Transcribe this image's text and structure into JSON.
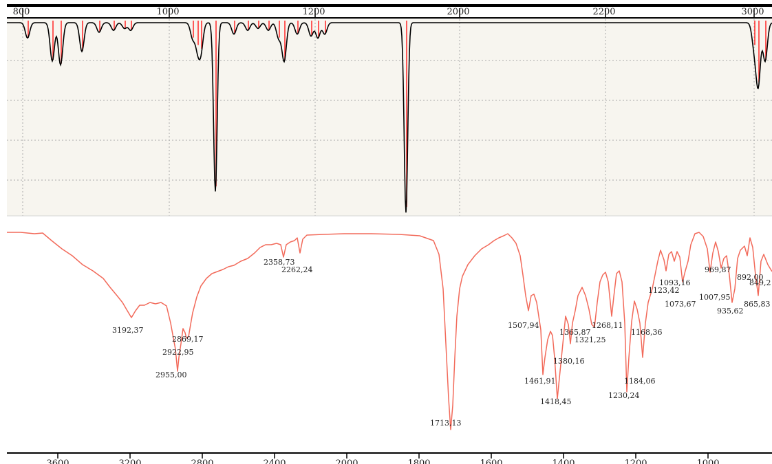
{
  "chart_data": [
    {
      "type": "line",
      "panel": "reference-spectrum",
      "x_axis_top": {
        "ticks": [
          800,
          1000,
          1200,
          2000,
          2200,
          3000
        ],
        "tick_labels": [
          "800",
          "1000",
          "1200",
          "2000",
          "2200",
          "3000"
        ]
      },
      "grid": true,
      "background": "#f7f5ef",
      "colors": {
        "curve": "#000000",
        "stick": "#ff3333"
      },
      "series": [
        {
          "peaks": [
            {
              "x": 800,
              "depth": 0.08
            },
            {
              "x": 820,
              "depth": 0.2
            },
            {
              "x": 850,
              "depth": 0.22
            },
            {
              "x": 890,
              "depth": 0.15
            },
            {
              "x": 910,
              "depth": 0.05
            },
            {
              "x": 930,
              "depth": 0.04
            },
            {
              "x": 960,
              "depth": 0.03
            },
            {
              "x": 975,
              "depth": 0.04
            },
            {
              "x": 1100,
              "depth": 0.08
            },
            {
              "x": 1140,
              "depth": 0.12
            },
            {
              "x": 1150,
              "depth": 0.14
            },
            {
              "x": 1185,
              "depth": 0.88
            },
            {
              "x": 1200,
              "depth": 0.06
            },
            {
              "x": 1230,
              "depth": 0.04
            },
            {
              "x": 1270,
              "depth": 0.03
            },
            {
              "x": 1300,
              "depth": 0.04
            },
            {
              "x": 1340,
              "depth": 0.08
            },
            {
              "x": 1360,
              "depth": 0.2
            },
            {
              "x": 1400,
              "depth": 0.06
            },
            {
              "x": 1430,
              "depth": 0.07
            },
            {
              "x": 1460,
              "depth": 0.08
            },
            {
              "x": 1485,
              "depth": 0.06
            },
            {
              "x": 1890,
              "depth": 0.99
            },
            {
              "x": 3005,
              "depth": 0.12
            },
            {
              "x": 3015,
              "depth": 0.32
            },
            {
              "x": 3030,
              "depth": 0.2
            }
          ]
        }
      ]
    },
    {
      "type": "line",
      "panel": "measured-spectrum",
      "x_axis_bottom": {
        "ticks": [
          3600,
          3200,
          2800,
          2400,
          2000,
          1800,
          1600,
          1400,
          1200,
          1000
        ],
        "tick_labels": [
          "3600",
          "3200",
          "2800",
          "2400",
          "2000",
          "1800",
          "1600",
          "1400",
          "1200",
          "1000"
        ]
      },
      "grid": false,
      "colors": {
        "curve": "#f26a5a"
      },
      "peak_labels": [
        {
          "text": "3192,37",
          "x": 3192.37
        },
        {
          "text": "2955,00",
          "x": 2955.0
        },
        {
          "text": "2922,95",
          "x": 2922.95
        },
        {
          "text": "2869,17",
          "x": 2869.17
        },
        {
          "text": "2358,73",
          "x": 2358.73
        },
        {
          "text": "2262,24",
          "x": 2262.24
        },
        {
          "text": "1713,13",
          "x": 1713.13
        },
        {
          "text": "1507,94",
          "x": 1507.94
        },
        {
          "text": "1461,91",
          "x": 1461.91
        },
        {
          "text": "1418,45",
          "x": 1418.45
        },
        {
          "text": "1380,16",
          "x": 1380.16
        },
        {
          "text": "1365,87",
          "x": 1365.87
        },
        {
          "text": "1321,25",
          "x": 1321.25
        },
        {
          "text": "1268,11",
          "x": 1268.11
        },
        {
          "text": "1230,24",
          "x": 1230.24
        },
        {
          "text": "1184,06",
          "x": 1184.06
        },
        {
          "text": "1168,36",
          "x": 1168.36
        },
        {
          "text": "1123,42",
          "x": 1123.42
        },
        {
          "text": "1093,16",
          "x": 1093.16
        },
        {
          "text": "1073,67",
          "x": 1073.67
        },
        {
          "text": "1007,95",
          "x": 1007.95
        },
        {
          "text": "969,87",
          "x": 969.87
        },
        {
          "text": "935,62",
          "x": 935.62
        },
        {
          "text": "892,00",
          "x": 892.0
        },
        {
          "text": "865,83",
          "x": 865.83
        },
        {
          "text": "849,2",
          "x": 849.2
        }
      ]
    }
  ]
}
